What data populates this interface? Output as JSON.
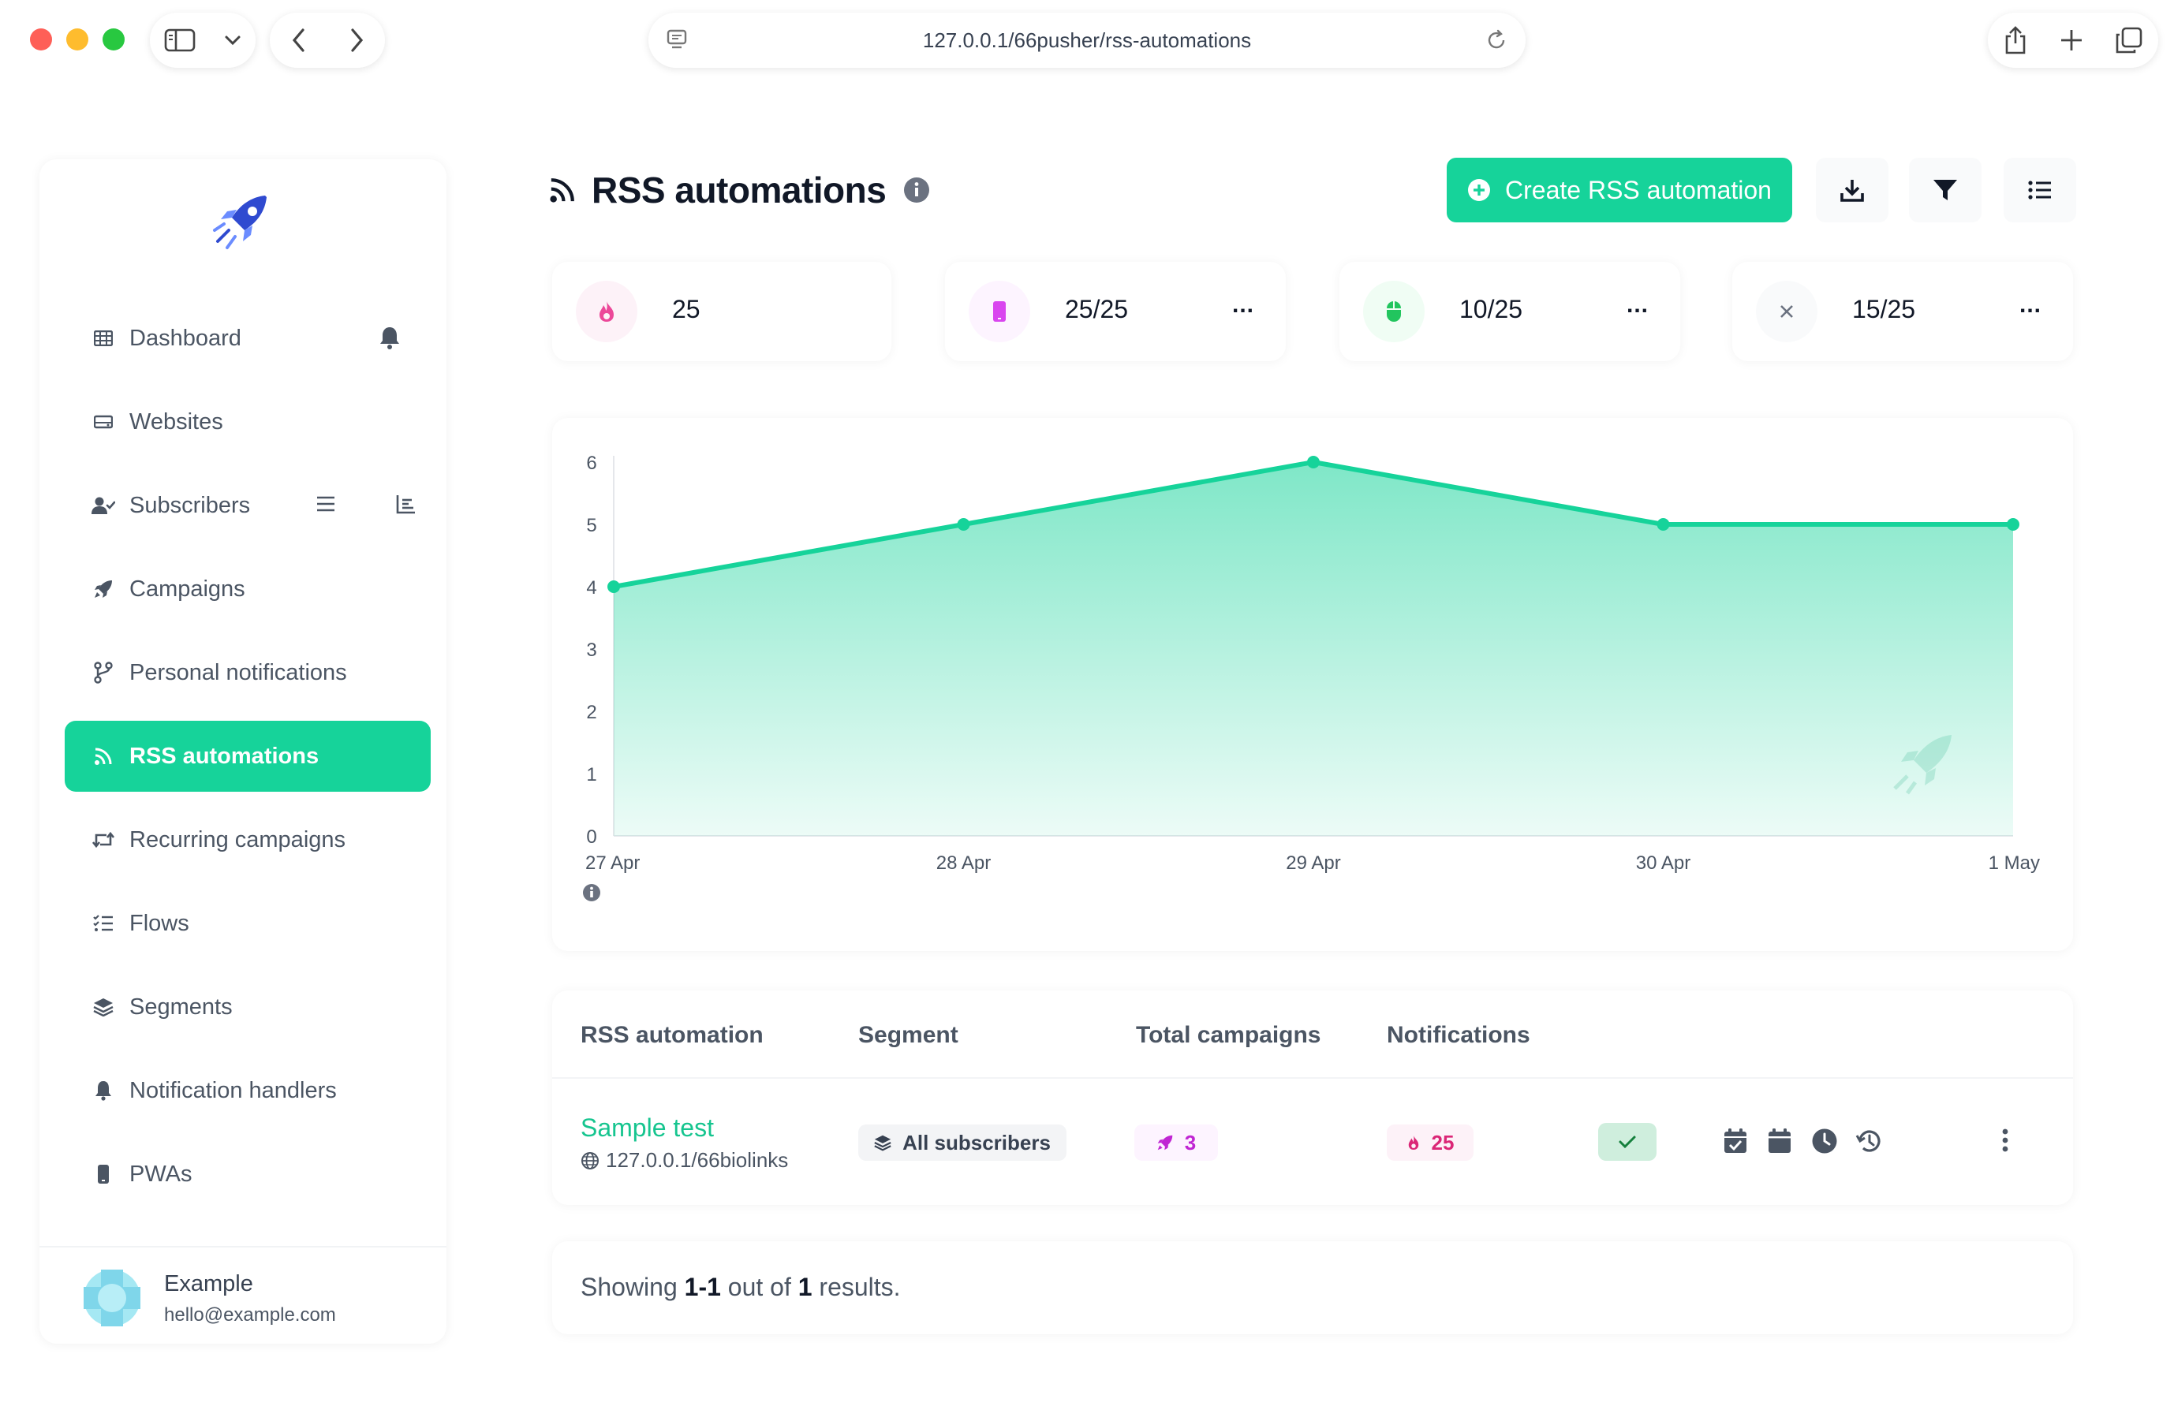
{
  "browser": {
    "url": "127.0.0.1/66pusher/rss-automations"
  },
  "sidebar": {
    "items": [
      {
        "label": "Dashboard",
        "icon": "table-icon"
      },
      {
        "label": "Websites",
        "icon": "hdd-icon"
      },
      {
        "label": "Subscribers",
        "icon": "user-check-icon"
      },
      {
        "label": "Campaigns",
        "icon": "rocket-icon"
      },
      {
        "label": "Personal notifications",
        "icon": "code-branch-icon"
      },
      {
        "label": "RSS automations",
        "icon": "rss-icon",
        "active": true
      },
      {
        "label": "Recurring campaigns",
        "icon": "retweet-icon"
      },
      {
        "label": "Flows",
        "icon": "list-check-icon"
      },
      {
        "label": "Segments",
        "icon": "layer-group-icon"
      },
      {
        "label": "Notification handlers",
        "icon": "bell-icon"
      },
      {
        "label": "PWAs",
        "icon": "mobile-icon"
      }
    ],
    "user": {
      "name": "Example",
      "email": "hello@example.com"
    }
  },
  "header": {
    "title": "RSS automations",
    "create_label": "Create RSS automation"
  },
  "stats": [
    {
      "value": "25",
      "icon": "fire-icon",
      "color": "#ec4899",
      "more": ""
    },
    {
      "value": "25/25",
      "icon": "mobile-icon",
      "color": "#d946ef",
      "more": "..."
    },
    {
      "value": "10/25",
      "icon": "mouse-icon",
      "color": "#22c55e",
      "more": "..."
    },
    {
      "value": "15/25",
      "icon": "times-icon",
      "color": "#6b7280",
      "more": "..."
    }
  ],
  "chart_data": {
    "type": "area",
    "x": [
      "27 Apr",
      "28 Apr",
      "29 Apr",
      "30 Apr",
      "1 May"
    ],
    "values": [
      4,
      5,
      6,
      5,
      5
    ],
    "y_ticks": [
      "0",
      "1",
      "2",
      "3",
      "4",
      "5",
      "6"
    ],
    "ylim": [
      0,
      6
    ],
    "color": "#16d39a",
    "grid": false,
    "legend": "none"
  },
  "table": {
    "columns": [
      "RSS automation",
      "Segment",
      "Total campaigns",
      "Notifications"
    ],
    "rows": [
      {
        "name": "Sample test",
        "url": "127.0.0.1/66biolinks",
        "segment": "All subscribers",
        "total_campaigns": "3",
        "notifications": "25"
      }
    ]
  },
  "pagination": {
    "prefix": "Showing",
    "range": "1-1",
    "middle": "out of",
    "total": "1",
    "suffix": "results."
  }
}
